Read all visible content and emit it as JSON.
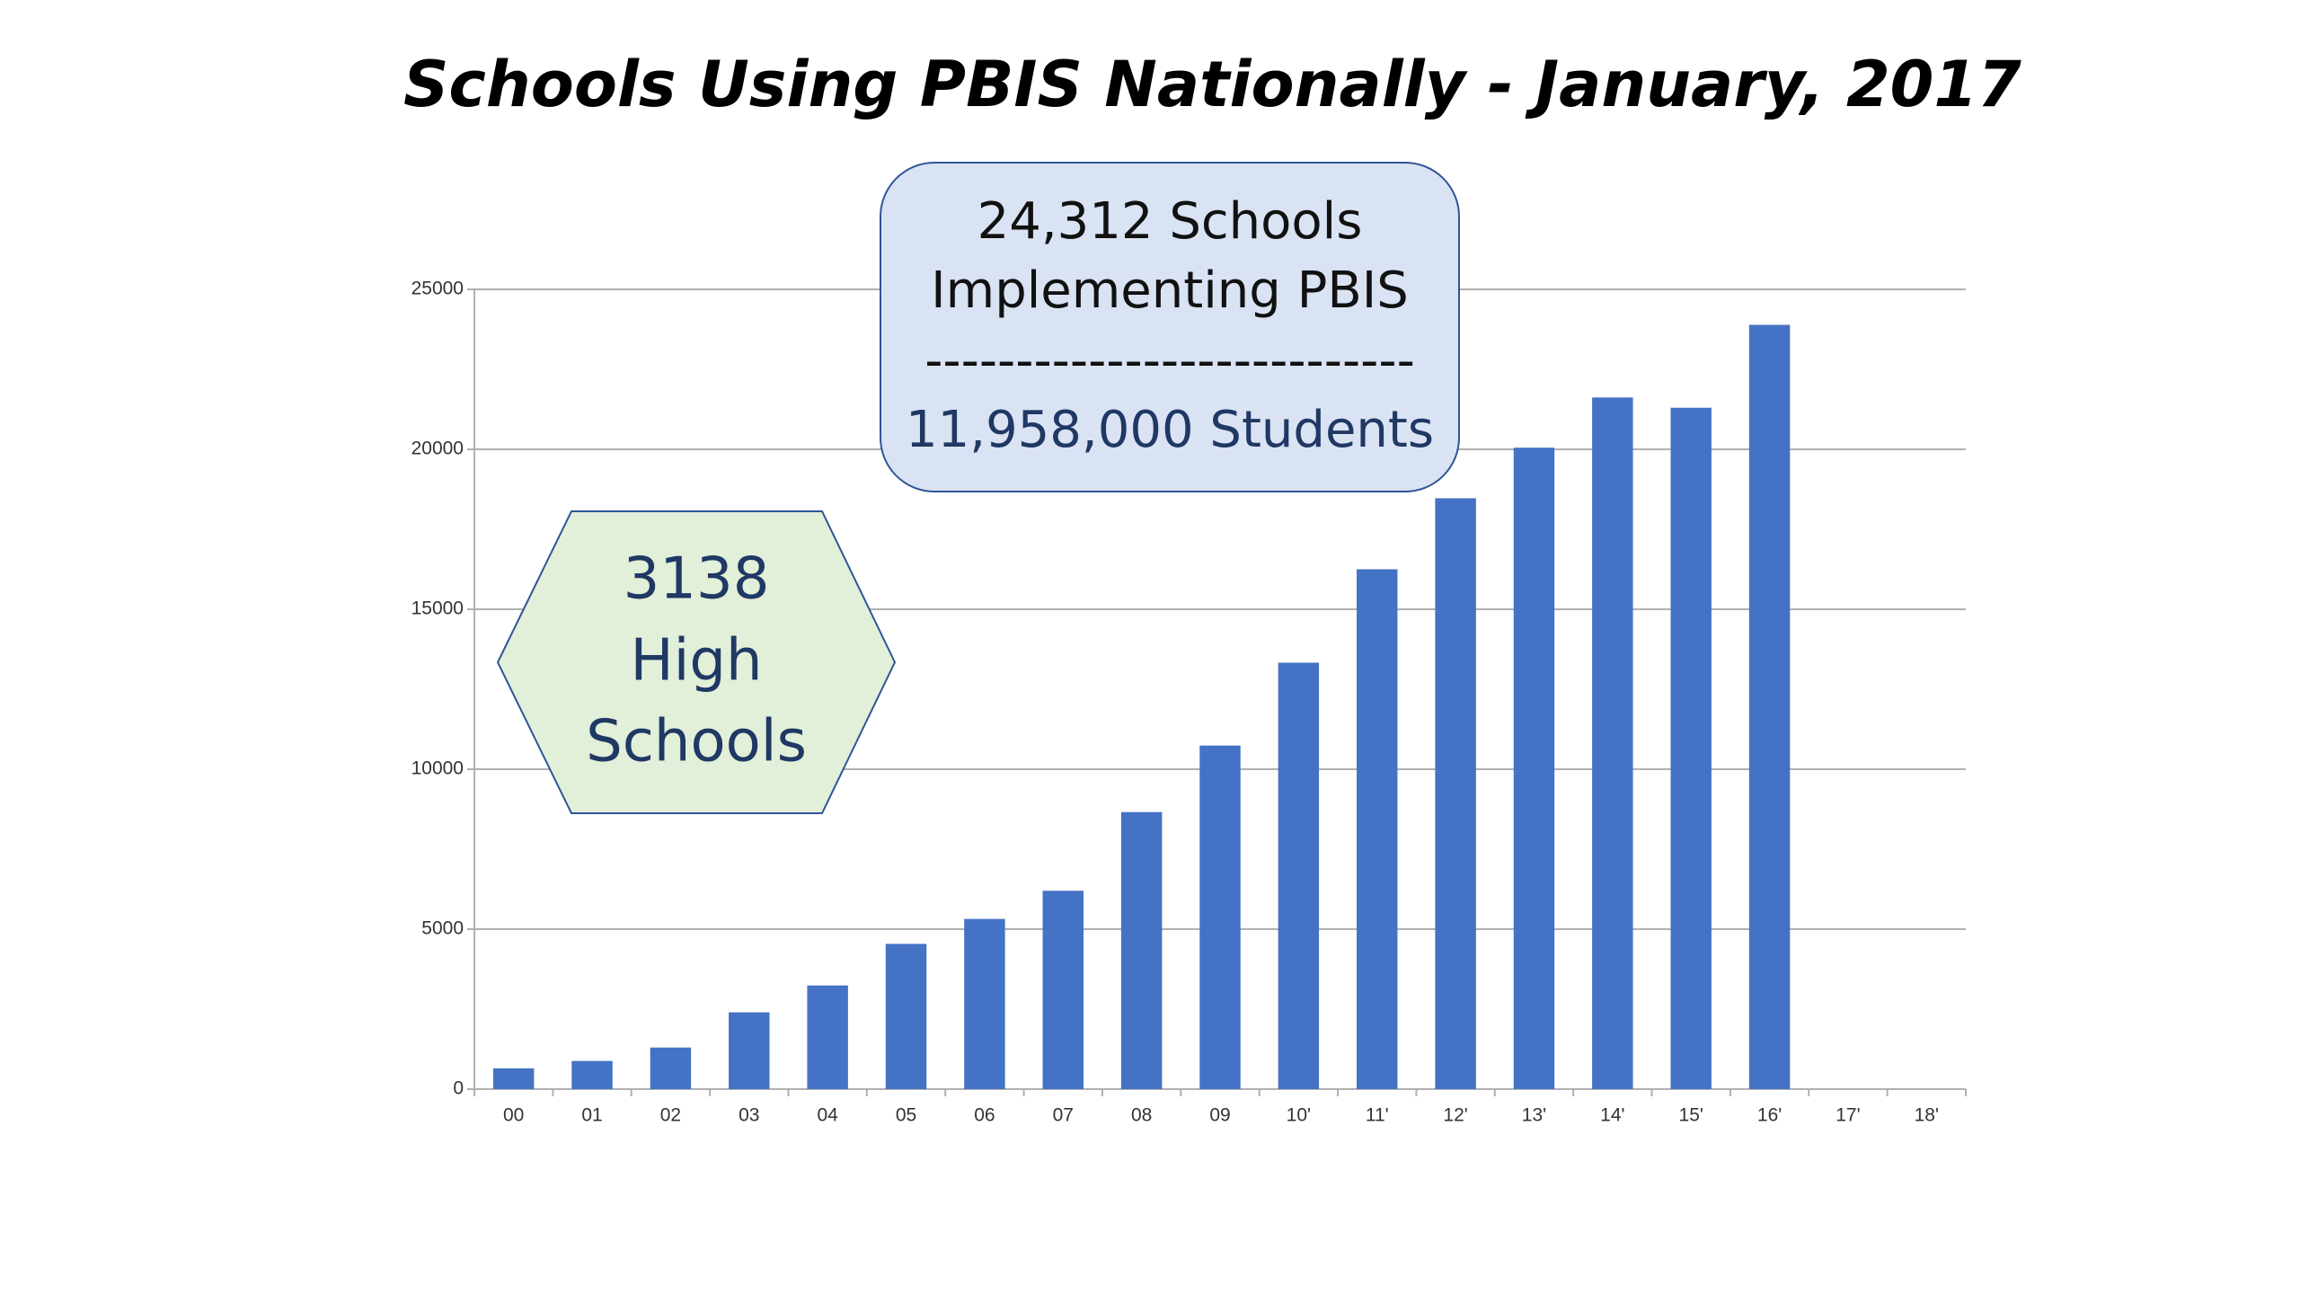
{
  "chart_data": {
    "type": "bar",
    "title": "Schools Using PBIS Nationally - January, 2017",
    "categories": [
      "00",
      "01",
      "02",
      "03",
      "04",
      "05",
      "06",
      "07",
      "08",
      "09",
      "10'",
      "11'",
      "12'",
      "13'",
      "14'",
      "15'",
      "16'",
      "17'",
      "18'"
    ],
    "values": [
      650,
      880,
      1300,
      2400,
      3240,
      4540,
      5320,
      6200,
      8660,
      10740,
      13330,
      16250,
      18470,
      20050,
      21620,
      21300,
      23890,
      null,
      null
    ],
    "color": "#4472c4",
    "ylim": [
      0,
      25000
    ],
    "yticks": [
      0,
      5000,
      10000,
      15000,
      20000,
      25000
    ],
    "grid": true,
    "callout": {
      "lines": [
        "24,312 Schools",
        "Implementing PBIS",
        "---------------------------",
        "11,958,000 Students"
      ]
    },
    "hexagon": {
      "lines": [
        "3138",
        "High",
        "Schools"
      ]
    }
  }
}
